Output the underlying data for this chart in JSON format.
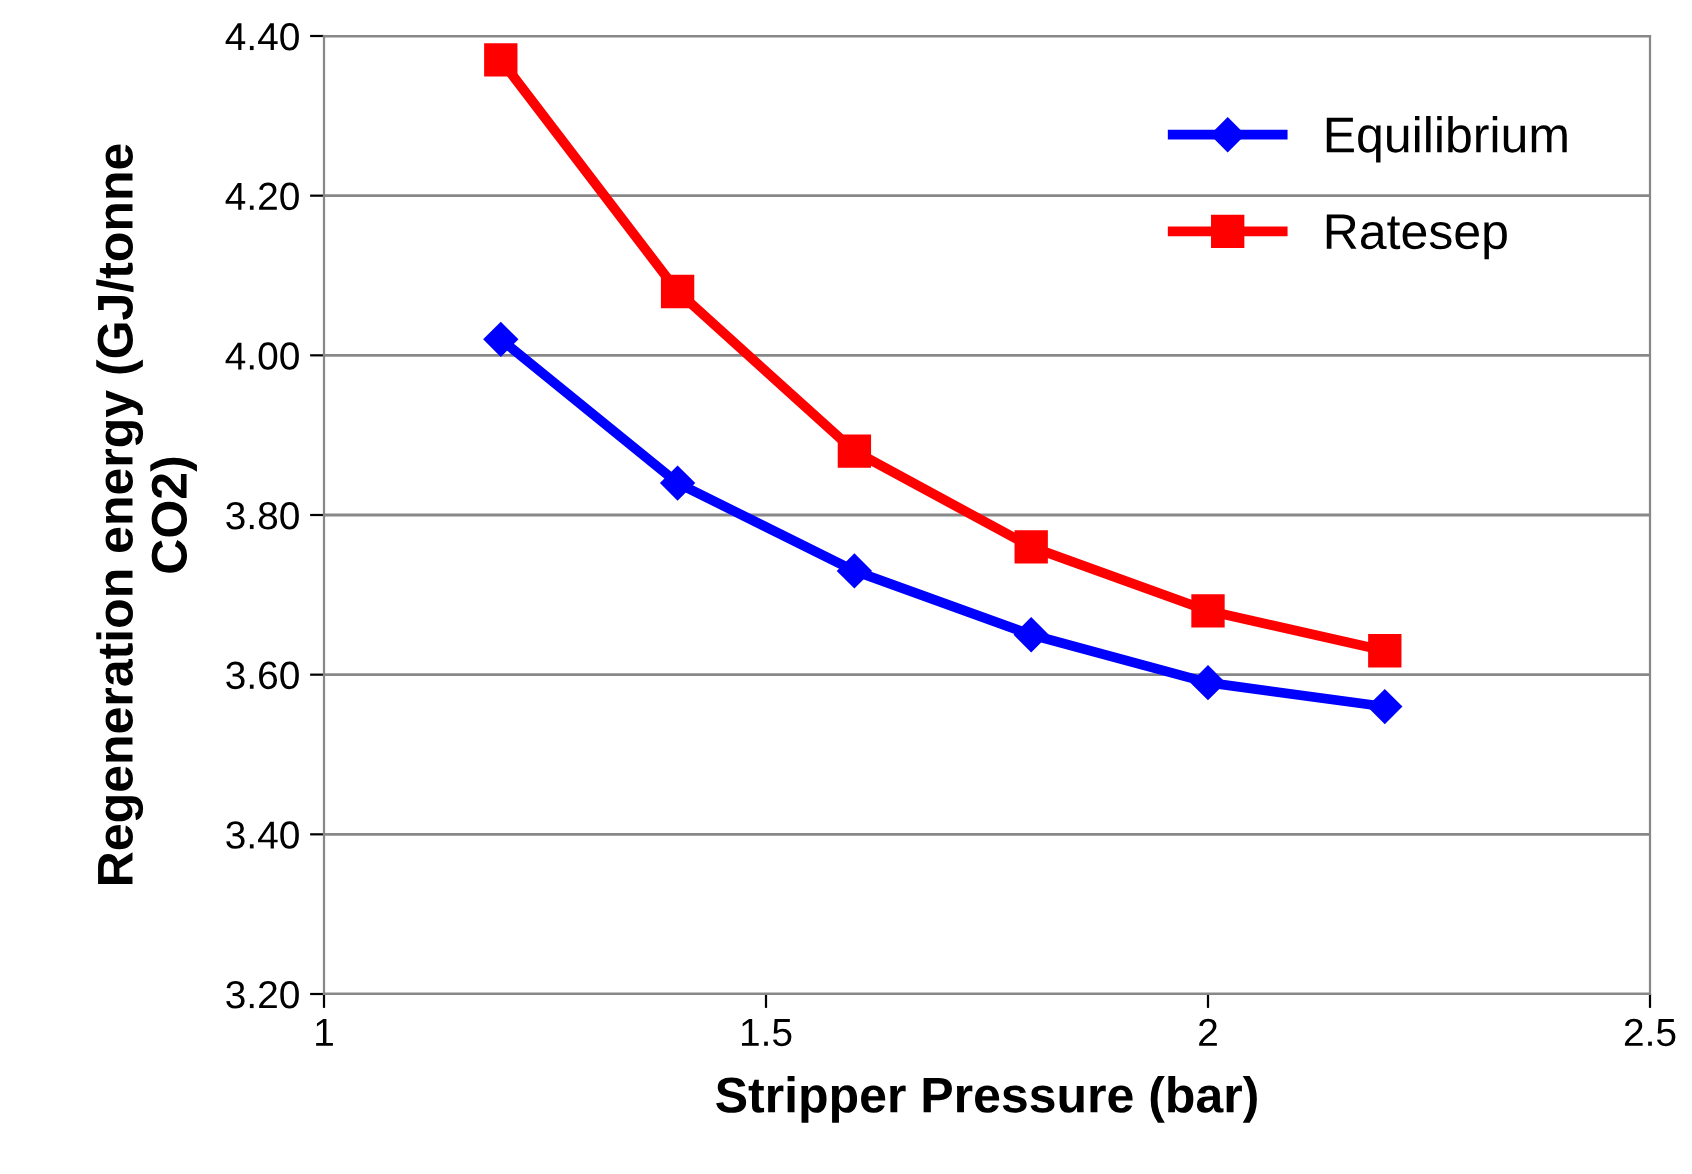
{
  "chart_data": {
    "type": "line",
    "xlabel": "Stripper Pressure (bar)",
    "ylabel": "Regeneration energy (GJ/tonne\nCO2)",
    "x": [
      1.2,
      1.4,
      1.6,
      1.8,
      2.0,
      2.2
    ],
    "series": [
      {
        "name": "Equilibrium",
        "color": "#0000ff",
        "marker": "diamond",
        "values": [
          4.02,
          3.84,
          3.73,
          3.65,
          3.59,
          3.56
        ]
      },
      {
        "name": "Ratesep",
        "color": "#ff0000",
        "marker": "square",
        "values": [
          4.37,
          4.08,
          3.88,
          3.76,
          3.68,
          3.63
        ]
      }
    ],
    "xlim": [
      1,
      2.5
    ],
    "xticks": [
      1,
      1.5,
      2,
      2.5
    ],
    "ylim": [
      3.2,
      4.4
    ],
    "yticks": [
      {
        "value": 3.2,
        "label": "3.20"
      },
      {
        "value": 3.4,
        "label": "3.40"
      },
      {
        "value": 3.6,
        "label": "3.60"
      },
      {
        "value": 3.8,
        "label": "3.80"
      },
      {
        "value": 4.0,
        "label": "4.00"
      },
      {
        "value": 4.2,
        "label": "4.20"
      },
      {
        "value": 4.4,
        "label": "4.40"
      }
    ],
    "grid": "y",
    "legend": "top right",
    "line_style": "solid"
  }
}
